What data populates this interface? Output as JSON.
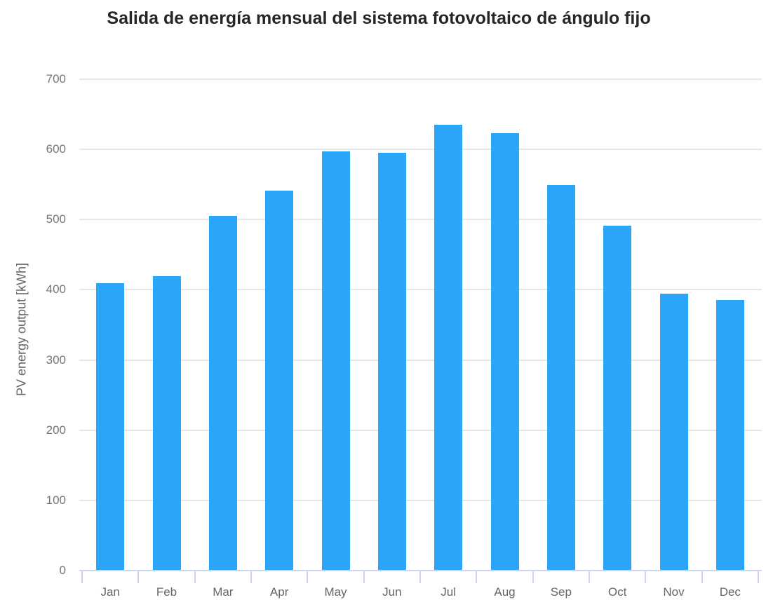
{
  "chart_data": {
    "type": "bar",
    "title": "Salida de energía mensual del sistema fotovoltaico de ángulo fijo",
    "ylabel": "PV energy output [kWh]",
    "xlabel": "",
    "categories": [
      "Jan",
      "Feb",
      "Mar",
      "Apr",
      "May",
      "Jun",
      "Jul",
      "Aug",
      "Sep",
      "Oct",
      "Nov",
      "Dec"
    ],
    "values": [
      409,
      419,
      505,
      541,
      597,
      595,
      635,
      623,
      549,
      491,
      394,
      385
    ],
    "ylim": [
      0,
      700
    ],
    "yticks": [
      0,
      100,
      200,
      300,
      400,
      500,
      600,
      700
    ],
    "grid": true,
    "legend": "none",
    "colors": {
      "bar": "#2AA5F7",
      "gridline": "#e6e6e6",
      "axis_line": "#ccd6eb",
      "title_text": "#262626",
      "y_tick_text": "#757575",
      "x_tick_text": "#666666",
      "y_axis_title_text": "#666666",
      "background": "#ffffff"
    }
  }
}
